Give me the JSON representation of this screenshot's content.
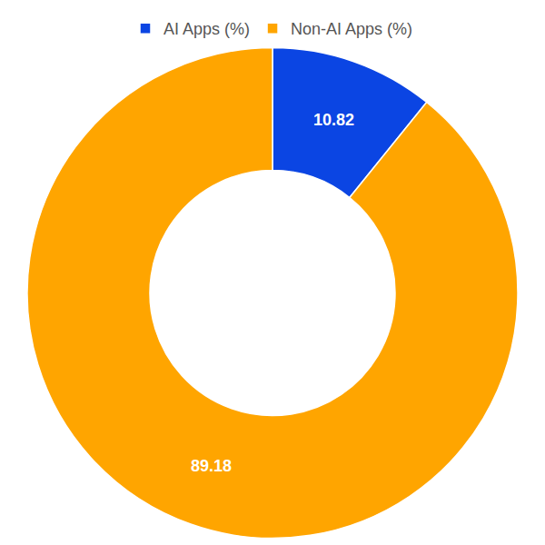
{
  "chart_data": {
    "type": "pie",
    "categories": [
      "AI Apps (%)",
      "Non-AI Apps (%)"
    ],
    "values": [
      10.82,
      89.18
    ],
    "colors": [
      "#0b45e3",
      "#ffa500"
    ],
    "data_labels": true,
    "legend": "top"
  }
}
